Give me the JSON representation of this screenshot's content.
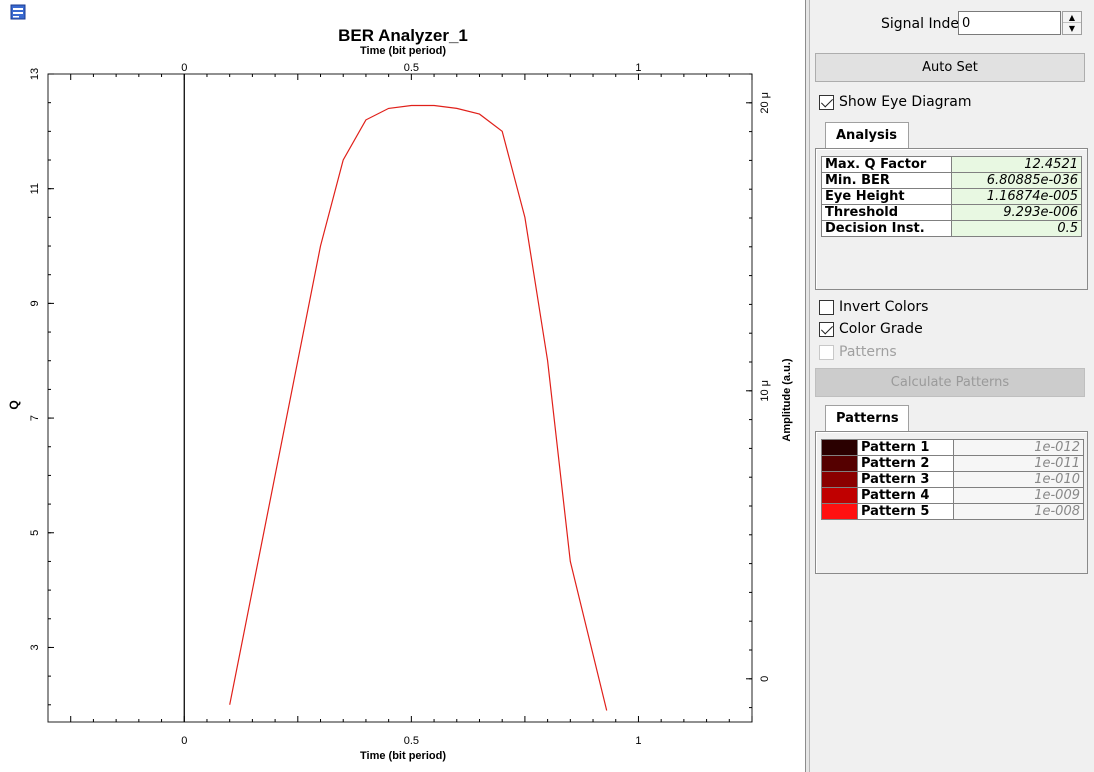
{
  "plot": {
    "title": "BER Analyzer_1",
    "top_axis_label": "Time (bit period)",
    "bottom_axis_label": "Time (bit period)",
    "left_axis_label": "Q",
    "right_axis_label": "Amplitude (a.u.)",
    "x_ticks": [
      "0",
      "0.5",
      "1"
    ],
    "left_ticks": [
      "13",
      "11",
      "9",
      "7",
      "5",
      "3"
    ],
    "right_ticks": [
      "20 μ",
      "10 μ",
      "0"
    ],
    "colors": {
      "trace_blue": "#1f3fff",
      "trace_cyan": "#1fb8e8",
      "trace_green": "#39e060",
      "trace_yellow": "#e8f020",
      "q_curve": "#e0201a"
    }
  },
  "chart_data": {
    "type": "line",
    "title": "BER Analyzer_1",
    "xlabel": "Time (bit period)",
    "ylabel": "Q",
    "y2label": "Amplitude (a.u.)",
    "xlim": [
      -0.3,
      1.25
    ],
    "ylim": [
      1.7,
      13
    ],
    "y2lim": [
      -1.5,
      21
    ],
    "grid": true,
    "series": [
      {
        "x": [
          0.1,
          0.2,
          0.3,
          0.35,
          0.4,
          0.45,
          0.5,
          0.55,
          0.6,
          0.65,
          0.7,
          0.75,
          0.8,
          0.85,
          0.93
        ],
        "y": [
          2.0,
          6.0,
          10.0,
          11.5,
          12.2,
          12.4,
          12.45,
          12.45,
          12.4,
          12.3,
          12.0,
          10.5,
          8.0,
          4.5,
          1.9
        ]
      }
    ]
  },
  "side": {
    "signal_index_label": "Signal Index:",
    "signal_index_value": "0",
    "auto_set_label": "Auto Set",
    "show_eye_label": "Show Eye Diagram",
    "analysis_tab_label": "Analysis",
    "analysis_rows": [
      {
        "key": "Max. Q Factor",
        "value": "12.4521"
      },
      {
        "key": "Min. BER",
        "value": "6.80885e-036"
      },
      {
        "key": "Eye Height",
        "value": "1.16874e-005"
      },
      {
        "key": "Threshold",
        "value": "9.293e-006"
      },
      {
        "key": "Decision Inst.",
        "value": "0.5"
      }
    ],
    "invert_colors_label": "Invert Colors",
    "color_grade_label": "Color Grade",
    "patterns_check_label": "Patterns",
    "calculate_patterns_label": "Calculate Patterns",
    "patterns_tab_label": "Patterns",
    "pattern_rows": [
      {
        "name": "Pattern 1",
        "value": "1e-012",
        "color": "#2a0000"
      },
      {
        "name": "Pattern 2",
        "value": "1e-011",
        "color": "#550000"
      },
      {
        "name": "Pattern 3",
        "value": "1e-010",
        "color": "#8a0000"
      },
      {
        "name": "Pattern 4",
        "value": "1e-009",
        "color": "#c00000"
      },
      {
        "name": "Pattern 5",
        "value": "1e-008",
        "color": "#ff1010"
      }
    ]
  }
}
